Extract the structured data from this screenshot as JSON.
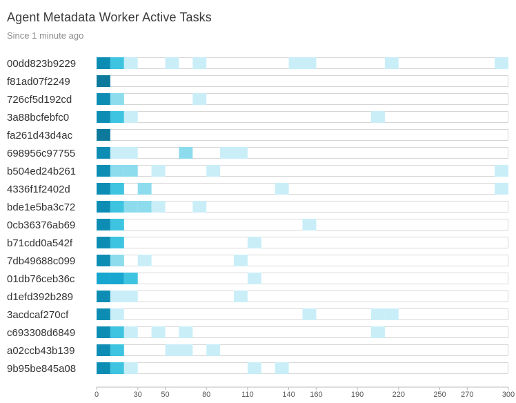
{
  "header": {
    "title": "Agent Metadata Worker Active Tasks",
    "subtitle": "Since 1 minute ago"
  },
  "colors": {
    "level1": "#c9eef8",
    "level2": "#8ddced",
    "level3": "#3ec4e0",
    "level4": "#16a6cf",
    "level5": "#0e8db4",
    "level6": "#0d7a9c",
    "row_border": "#d6d6d6",
    "axis": "#bbbbbb"
  },
  "chart_data": {
    "type": "heatmap",
    "title": "Agent Metadata Worker Active Tasks",
    "subtitle": "Since 1 minute ago",
    "x_ticks": [
      0,
      30,
      50,
      80,
      110,
      140,
      160,
      190,
      220,
      250,
      270,
      300
    ],
    "xlim": [
      0,
      300
    ],
    "bucket_width": 10,
    "rows": [
      {
        "name": "00dd823b9229",
        "cells": [
          [
            0,
            "level5"
          ],
          [
            10,
            "level3"
          ],
          [
            20,
            "level1"
          ],
          [
            50,
            "level1"
          ],
          [
            70,
            "level1"
          ],
          [
            140,
            "level1"
          ],
          [
            150,
            "level1"
          ],
          [
            210,
            "level1"
          ],
          [
            290,
            "level1"
          ]
        ]
      },
      {
        "name": "f81ad07f2249",
        "cells": [
          [
            0,
            "level6"
          ]
        ]
      },
      {
        "name": "726cf5d192cd",
        "cells": [
          [
            0,
            "level5"
          ],
          [
            10,
            "level2"
          ],
          [
            70,
            "level1"
          ]
        ]
      },
      {
        "name": "3a88bcfebfc0",
        "cells": [
          [
            0,
            "level5"
          ],
          [
            10,
            "level3"
          ],
          [
            20,
            "level1"
          ],
          [
            200,
            "level1"
          ]
        ]
      },
      {
        "name": "fa261d43d4ac",
        "cells": [
          [
            0,
            "level6"
          ]
        ]
      },
      {
        "name": "698956c97755",
        "cells": [
          [
            0,
            "level5"
          ],
          [
            10,
            "level1"
          ],
          [
            20,
            "level1"
          ],
          [
            60,
            "level2"
          ],
          [
            90,
            "level1"
          ],
          [
            100,
            "level1"
          ]
        ]
      },
      {
        "name": "b504ed24b261",
        "cells": [
          [
            0,
            "level5"
          ],
          [
            10,
            "level2"
          ],
          [
            20,
            "level2"
          ],
          [
            40,
            "level1"
          ],
          [
            80,
            "level1"
          ],
          [
            290,
            "level1"
          ]
        ]
      },
      {
        "name": "4336f1f2402d",
        "cells": [
          [
            0,
            "level5"
          ],
          [
            10,
            "level3"
          ],
          [
            30,
            "level2"
          ],
          [
            130,
            "level1"
          ],
          [
            290,
            "level1"
          ]
        ]
      },
      {
        "name": "bde1e5ba3c72",
        "cells": [
          [
            0,
            "level5"
          ],
          [
            10,
            "level3"
          ],
          [
            20,
            "level2"
          ],
          [
            30,
            "level2"
          ],
          [
            40,
            "level1"
          ],
          [
            70,
            "level1"
          ]
        ]
      },
      {
        "name": "0cb36376ab69",
        "cells": [
          [
            0,
            "level5"
          ],
          [
            10,
            "level3"
          ],
          [
            150,
            "level1"
          ]
        ]
      },
      {
        "name": "b71cdd0a542f",
        "cells": [
          [
            0,
            "level5"
          ],
          [
            10,
            "level3"
          ],
          [
            110,
            "level1"
          ]
        ]
      },
      {
        "name": "7db49688c099",
        "cells": [
          [
            0,
            "level5"
          ],
          [
            10,
            "level2"
          ],
          [
            30,
            "level1"
          ],
          [
            100,
            "level1"
          ]
        ]
      },
      {
        "name": "01db76ceb36c",
        "cells": [
          [
            0,
            "level4"
          ],
          [
            10,
            "level4"
          ],
          [
            20,
            "level3"
          ],
          [
            110,
            "level1"
          ]
        ]
      },
      {
        "name": "d1efd392b289",
        "cells": [
          [
            0,
            "level5"
          ],
          [
            10,
            "level1"
          ],
          [
            20,
            "level1"
          ],
          [
            100,
            "level1"
          ]
        ]
      },
      {
        "name": "3acdcaf270cf",
        "cells": [
          [
            0,
            "level5"
          ],
          [
            10,
            "level1"
          ],
          [
            150,
            "level1"
          ],
          [
            200,
            "level1"
          ],
          [
            210,
            "level1"
          ]
        ]
      },
      {
        "name": "c693308d6849",
        "cells": [
          [
            0,
            "level5"
          ],
          [
            10,
            "level3"
          ],
          [
            20,
            "level1"
          ],
          [
            40,
            "level1"
          ],
          [
            60,
            "level1"
          ],
          [
            200,
            "level1"
          ]
        ]
      },
      {
        "name": "a02ccb43b139",
        "cells": [
          [
            0,
            "level5"
          ],
          [
            10,
            "level3"
          ],
          [
            50,
            "level1"
          ],
          [
            60,
            "level1"
          ],
          [
            80,
            "level1"
          ]
        ]
      },
      {
        "name": "9b95be845a08",
        "cells": [
          [
            0,
            "level5"
          ],
          [
            10,
            "level3"
          ],
          [
            20,
            "level1"
          ],
          [
            110,
            "level1"
          ],
          [
            130,
            "level1"
          ]
        ]
      }
    ]
  }
}
